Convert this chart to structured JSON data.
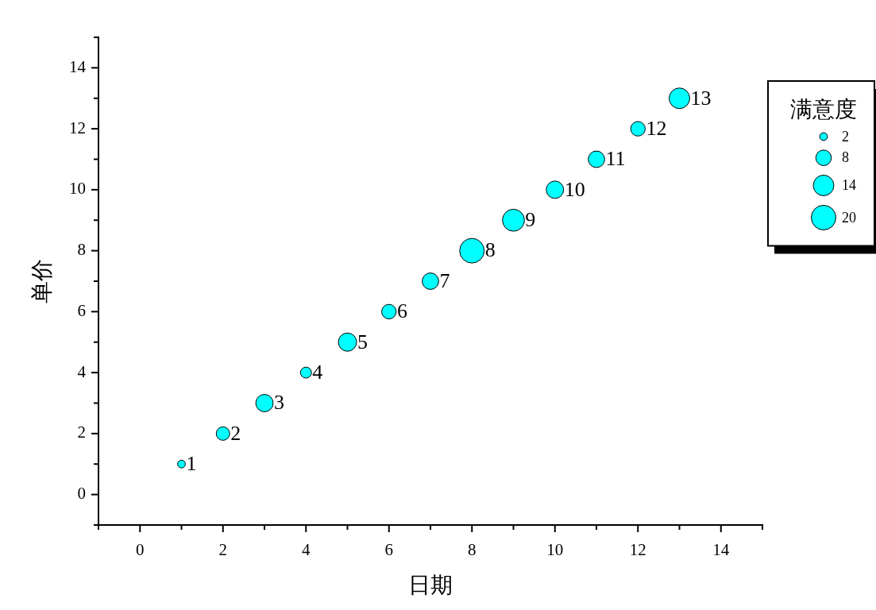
{
  "chart_data": {
    "type": "bubble",
    "xlabel": "日期",
    "ylabel": "单价",
    "legend_title": "满意度",
    "x": [
      1,
      2,
      3,
      4,
      5,
      6,
      7,
      8,
      9,
      10,
      11,
      12,
      13
    ],
    "series": [
      {
        "color": "#00ffff",
        "values": [
          1,
          2,
          3,
          4,
          5,
          6,
          7,
          8,
          9,
          10,
          11,
          12,
          13
        ],
        "sizes": [
          2,
          6,
          10,
          4,
          11,
          7,
          9,
          20,
          16,
          10,
          9,
          7,
          14
        ]
      }
    ],
    "size_legend": [
      2,
      8,
      14,
      20
    ],
    "xlim": [
      -1,
      15
    ],
    "xticks": [
      {
        "value": -1,
        "label": null
      },
      0,
      {
        "value": 1,
        "label": null
      },
      2,
      {
        "value": 3,
        "label": null
      },
      4,
      {
        "value": 5,
        "label": null
      },
      6,
      {
        "value": 7,
        "label": null
      },
      8,
      {
        "value": 9,
        "label": null
      },
      10,
      {
        "value": 11,
        "label": null
      },
      12,
      {
        "value": 13,
        "label": null
      },
      14,
      {
        "value": 15,
        "label": null
      }
    ],
    "ylim": [
      -1,
      15
    ],
    "yticks": [
      {
        "value": -1,
        "label": null
      },
      0,
      {
        "value": 1,
        "label": null
      },
      2,
      {
        "value": 3,
        "label": null
      },
      4,
      {
        "value": 5,
        "label": null
      },
      6,
      {
        "value": 7,
        "label": null
      },
      8,
      {
        "value": 9,
        "label": null
      },
      10,
      {
        "value": 11,
        "label": null
      },
      12,
      {
        "value": 13,
        "label": null
      },
      14,
      {
        "value": 15,
        "label": null
      }
    ],
    "data_labels": true
  }
}
